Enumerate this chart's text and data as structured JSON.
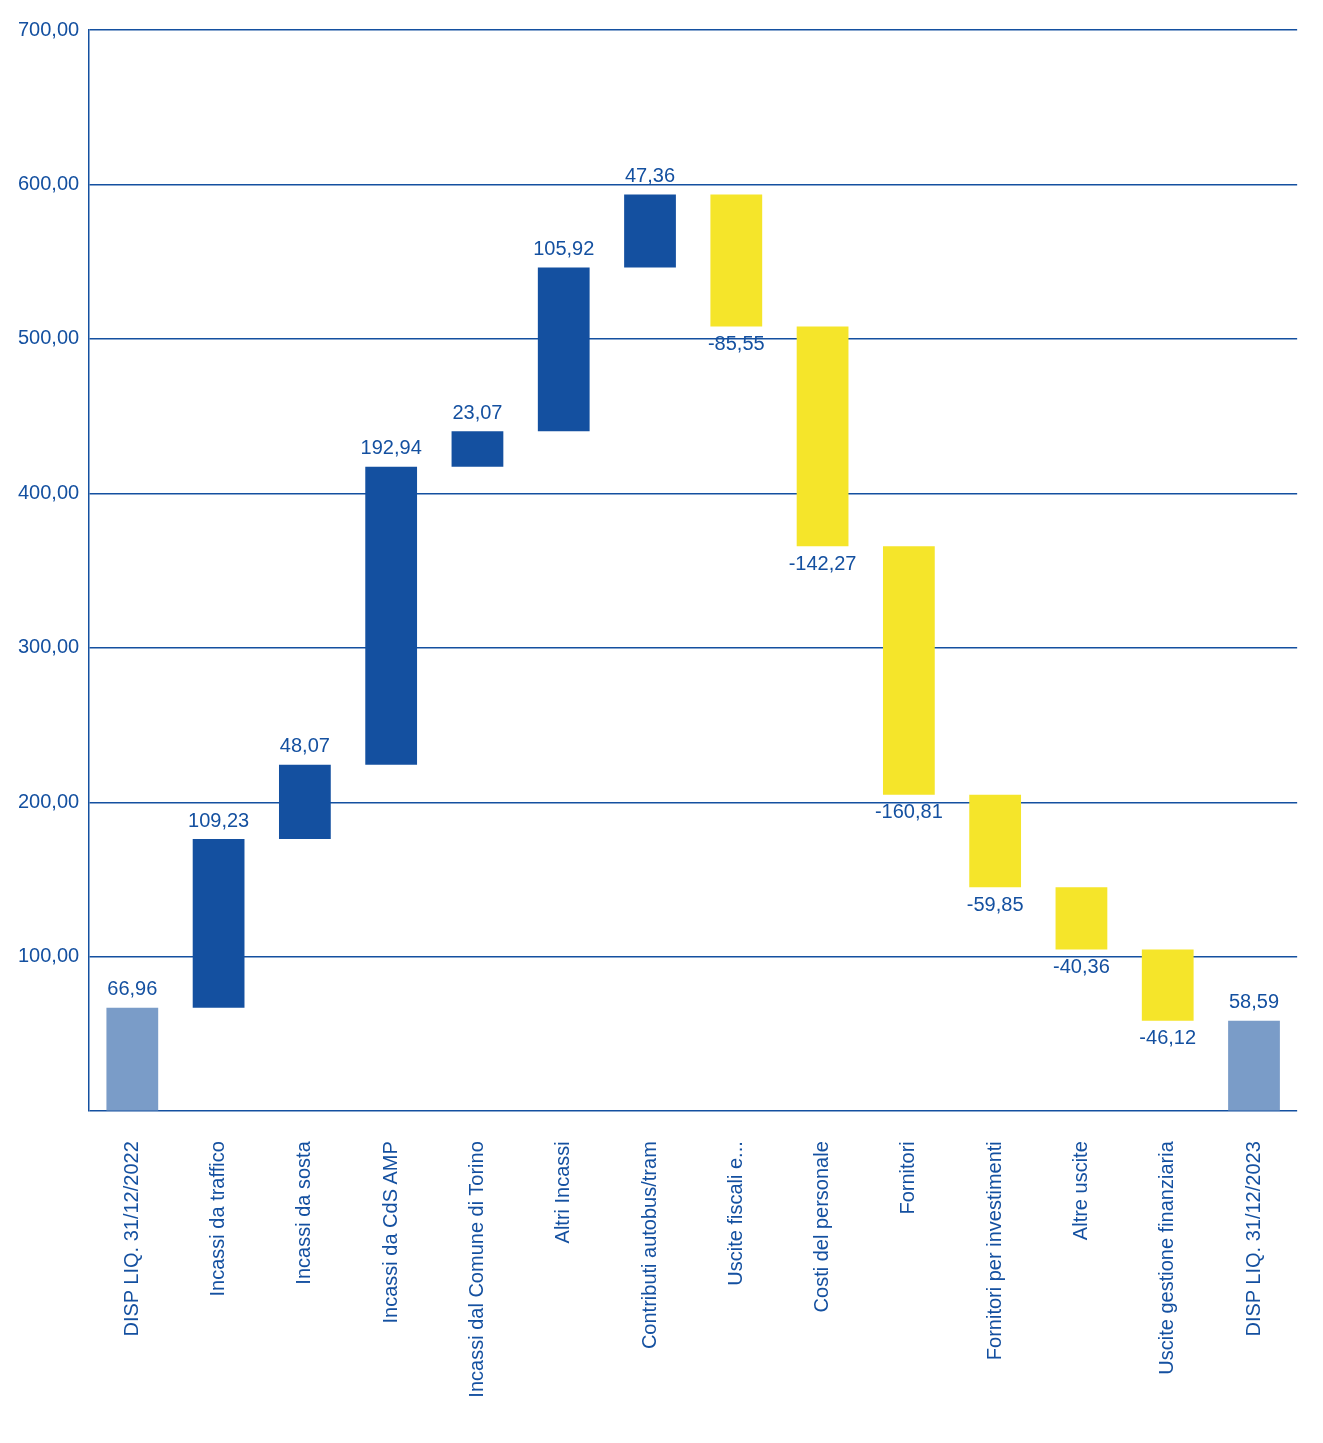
{
  "chart_data": {
    "type": "bar",
    "categories": [
      "DISP LIQ. 31/12/2022",
      "Incassi da traffico",
      "Incassi da sosta",
      "Incassi da CdS AMP",
      "Incassi dal Comune di Torino",
      "Altri Incassi",
      "Contributi autobus/tram",
      "Uscite fiscali e...",
      "Costi del personale",
      "Fornitori",
      "Fornitori per investimenti",
      "Altre uscite",
      "Uscite gestione finanziaria",
      "DISP LIQ. 31/12/2023"
    ],
    "values": [
      66.96,
      109.23,
      48.07,
      192.94,
      23.07,
      105.92,
      47.36,
      -85.55,
      -142.27,
      -160.81,
      -59.85,
      -40.36,
      -46.12,
      58.59
    ],
    "base": [
      0,
      66.96,
      176.19,
      224.26,
      417.2,
      440.27,
      546.19,
      593.55,
      508,
      365.73,
      204.92,
      145.07,
      104.71,
      0
    ],
    "colors": [
      "#7a9cc8",
      "#1450a0",
      "#1450a0",
      "#1450a0",
      "#1450a0",
      "#1450a0",
      "#1450a0",
      "#f5e52a",
      "#f5e52a",
      "#f5e52a",
      "#f5e52a",
      "#f5e52a",
      "#f5e52a",
      "#7a9cc8"
    ],
    "value_labels": [
      "66,96",
      "109,23",
      "48,07",
      "192,94",
      "23,07",
      "105,92",
      "47,36",
      "-85,55",
      "-142,27",
      "-160,81",
      "-59,85",
      "-40,36",
      "-46,12",
      "58,59"
    ],
    "ylim": [
      0,
      700
    ],
    "yticks": [
      {
        "value": 0,
        "label": null
      },
      {
        "value": 100,
        "label": "100,00"
      },
      {
        "value": 200,
        "label": "200,00"
      },
      {
        "value": 300,
        "label": "300,00"
      },
      {
        "value": 400,
        "label": "400,00"
      },
      {
        "value": 500,
        "label": "500,00"
      },
      {
        "value": 600,
        "label": "600,00"
      },
      {
        "value": 700,
        "label": "700,00"
      }
    ],
    "grid": "y",
    "legend": false
  }
}
